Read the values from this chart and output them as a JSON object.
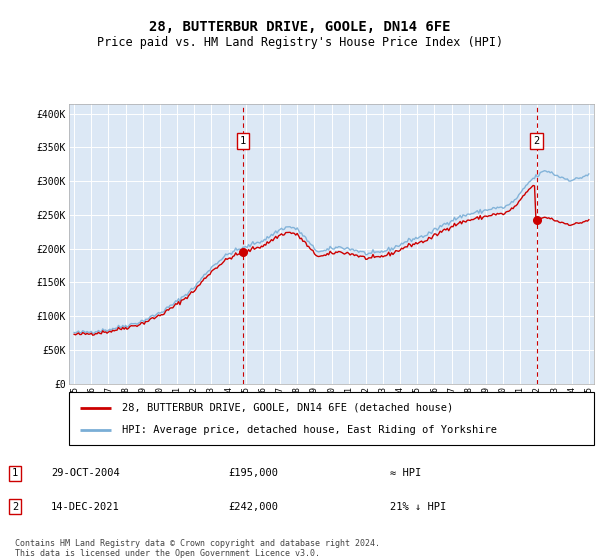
{
  "title": "28, BUTTERBUR DRIVE, GOOLE, DN14 6FE",
  "subtitle": "Price paid vs. HM Land Registry's House Price Index (HPI)",
  "title_fontsize": 10,
  "subtitle_fontsize": 8.5,
  "plot_bg_color": "#dce8f5",
  "red_color": "#cc0000",
  "blue_color": "#7aaed6",
  "ylabel_values": [
    "£0",
    "£50K",
    "£100K",
    "£150K",
    "£200K",
    "£250K",
    "£300K",
    "£350K",
    "£400K"
  ],
  "yticks": [
    0,
    50000,
    100000,
    150000,
    200000,
    250000,
    300000,
    350000,
    400000
  ],
  "ylim": [
    0,
    415000
  ],
  "sale1_price": 195000,
  "sale1_x": 2004.83,
  "sale2_price": 242000,
  "sale2_x": 2021.95,
  "legend_line1": "28, BUTTERBUR DRIVE, GOOLE, DN14 6FE (detached house)",
  "legend_line2": "HPI: Average price, detached house, East Riding of Yorkshire",
  "footer": "Contains HM Land Registry data © Crown copyright and database right 2024.\nThis data is licensed under the Open Government Licence v3.0."
}
